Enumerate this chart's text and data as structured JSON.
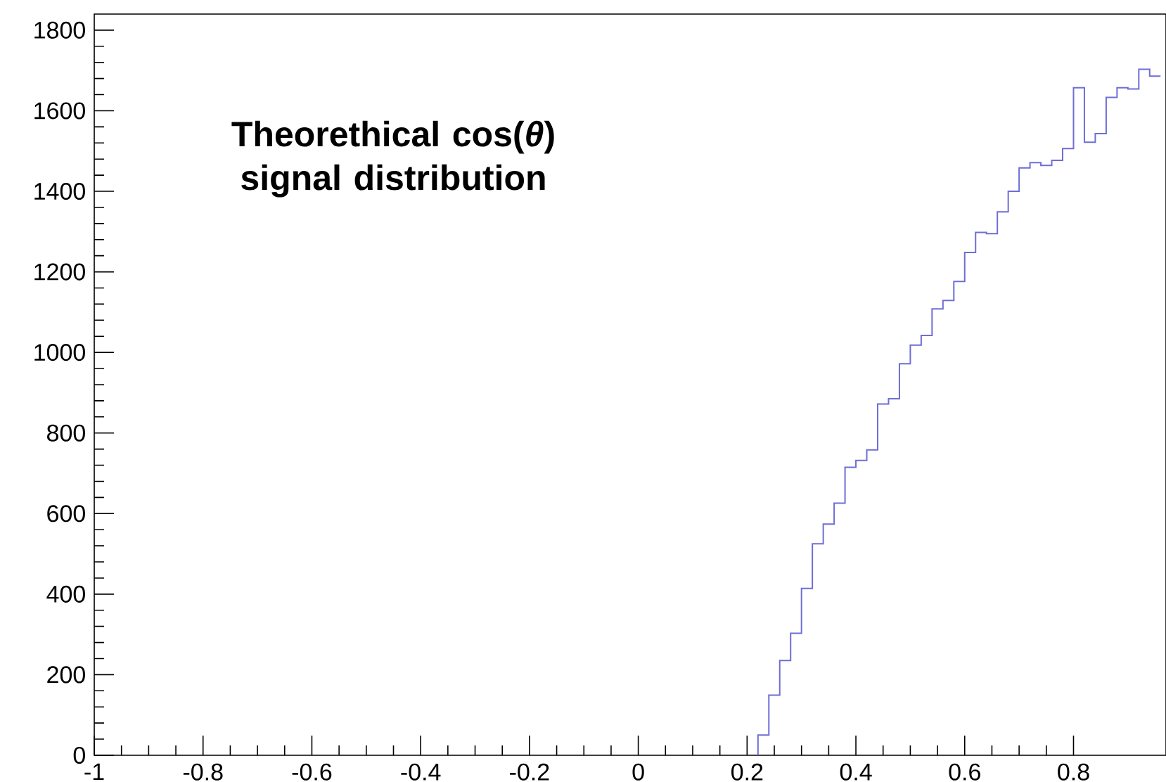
{
  "chart_data": {
    "type": "histogram",
    "title": "Theorethical cos(*θ*) signal distribution",
    "color": "#6e6ed6",
    "bins": [
      0.22,
      0.24,
      0.26,
      0.28,
      0.3,
      0.32,
      0.34,
      0.36,
      0.38,
      0.4,
      0.42,
      0.44,
      0.46,
      0.48,
      0.5,
      0.52,
      0.54,
      0.56,
      0.58,
      0.6,
      0.62,
      0.64,
      0.66,
      0.68,
      0.7,
      0.72,
      0.74,
      0.76,
      0.78,
      0.8,
      0.82,
      0.84,
      0.86,
      0.88,
      0.9,
      0.92,
      0.94,
      0.96
    ],
    "values": [
      50,
      149,
      235,
      303,
      414,
      525,
      574,
      626,
      715,
      732,
      758,
      872,
      885,
      972,
      1018,
      1042,
      1108,
      1129,
      1176,
      1248,
      1298,
      1295,
      1349,
      1400,
      1458,
      1471,
      1464,
      1477,
      1506,
      1657,
      1522,
      1543,
      1633,
      1657,
      1654,
      1703,
      1686
    ],
    "xlim": [
      -1,
      0.97
    ],
    "ylim": [
      0,
      1840
    ],
    "xticks": [
      -1,
      -0.8,
      -0.6,
      -0.4,
      -0.2,
      0,
      0.2,
      0.4,
      0.6,
      0.8
    ],
    "yticks": [
      0,
      200,
      400,
      600,
      800,
      1000,
      1200,
      1400,
      1600,
      1800
    ]
  }
}
